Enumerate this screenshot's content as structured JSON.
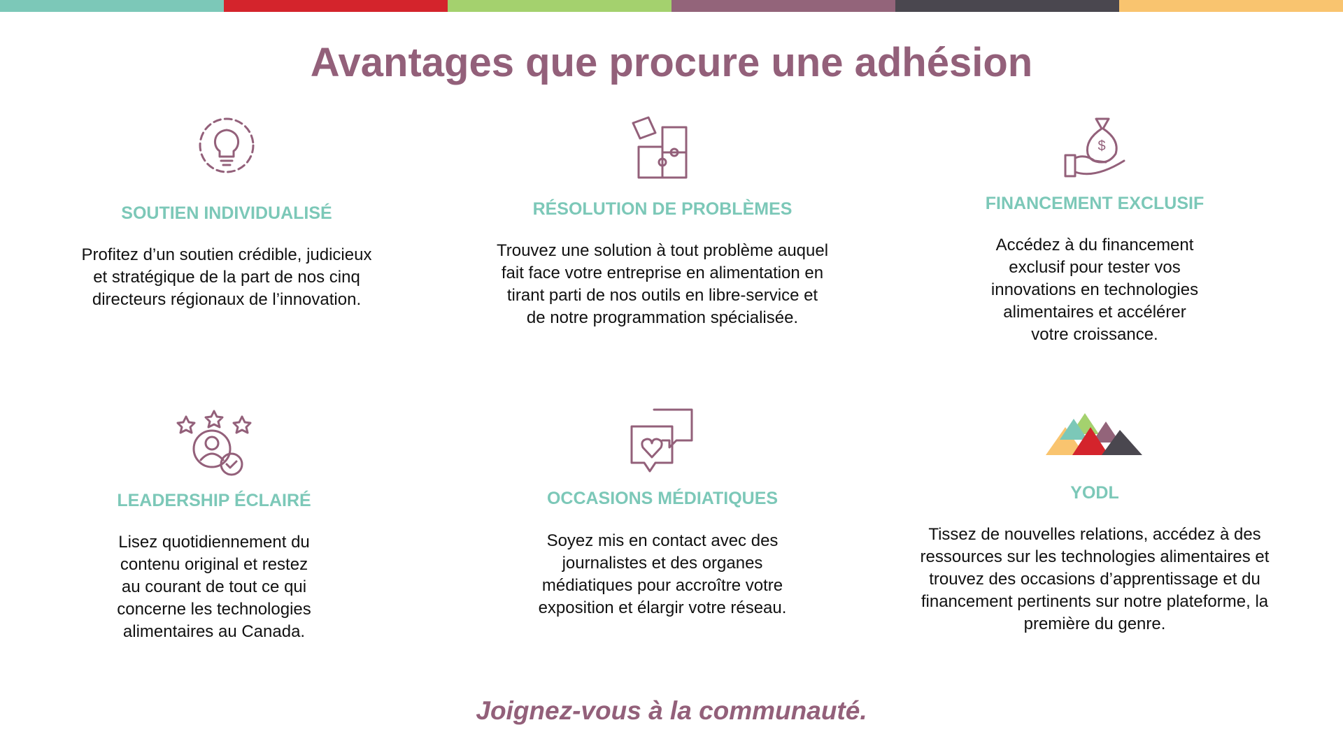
{
  "header": {
    "title": "Avantages que procure une adhésion"
  },
  "benefits": [
    {
      "heading": "SOUTIEN INDIVIDUALISÉ",
      "lines": [
        "Profitez d’un soutien crédible, judicieux",
        "et stratégique de la part de nos cinq",
        "directeurs régionaux de l’innovation."
      ]
    },
    {
      "heading": "RÉSOLUTION DE PROBLÈMES",
      "lines": [
        "Trouvez une solution à tout problème auquel",
        "fait face votre entreprise en alimentation en",
        "tirant parti de nos outils en libre-service et",
        "de notre programmation spécialisée."
      ]
    },
    {
      "heading": "FINANCEMENT EXCLUSIF",
      "lines": [
        "Accédez à du financement",
        "exclusif pour tester vos",
        "innovations en technologies",
        "alimentaires et accélérer",
        "votre croissance."
      ]
    },
    {
      "heading": "LEADERSHIP ÉCLAIRÉ",
      "lines": [
        "Lisez quotidiennement du",
        "contenu original et restez",
        "au courant de tout ce qui",
        "concerne les technologies",
        "alimentaires au Canada."
      ]
    },
    {
      "heading": "OCCASIONS MÉDIATIQUES",
      "lines": [
        "Soyez mis en contact avec des",
        "journalistes et des organes",
        "médiatiques pour accroître votre",
        "exposition et élargir votre réseau."
      ]
    },
    {
      "heading": "YODL",
      "lines": [
        "Tissez de nouvelles relations, accédez à des",
        "ressources sur les technologies alimentaires et",
        "trouvez des occasions d’apprentissage et du",
        "financement pertinents sur notre plateforme, la",
        "première du genre."
      ]
    }
  ],
  "footer": {
    "tagline": "Joignez-vous à la communauté."
  }
}
